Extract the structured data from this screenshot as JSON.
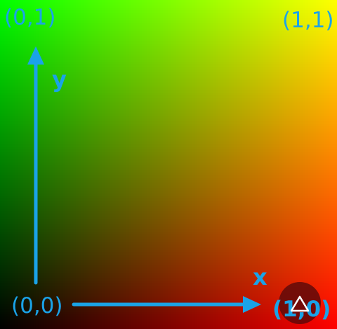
{
  "labels": {
    "origin": "(0,0)",
    "top_left": "(0,1)",
    "top_right": "(1,1)",
    "bottom_right": "(1,0)",
    "x_axis": "x",
    "y_axis": "y"
  },
  "gradient": {
    "bottom_left": "#000000",
    "bottom_right": "#ff0000",
    "top_left": "#00ff00",
    "top_right": "#ffff00"
  },
  "colors": {
    "accent": "#1aa3e8",
    "cursor_badge": "#5a0a0a"
  },
  "icons": {
    "cursor": "cursor-triangle-icon"
  }
}
